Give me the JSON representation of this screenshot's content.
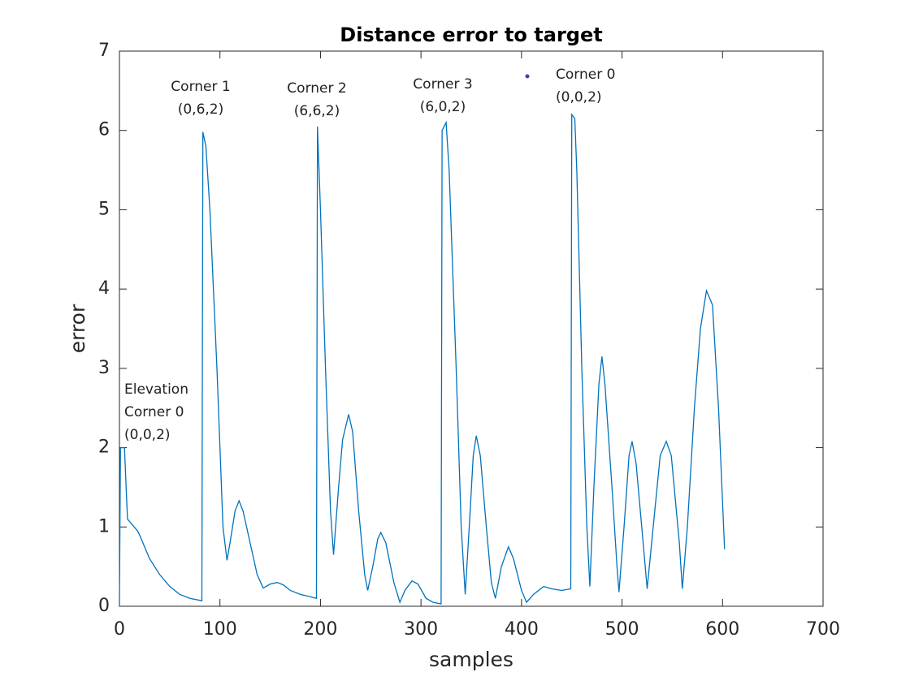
{
  "chart_data": {
    "type": "line",
    "title": "Distance error to target",
    "x_label": "samples",
    "y_label": "error",
    "xlim": [
      0,
      700
    ],
    "xticks": [
      0,
      100,
      200,
      300,
      400,
      500,
      600,
      700
    ],
    "ylim": [
      0,
      7
    ],
    "yticks": [
      0,
      1,
      2,
      3,
      4,
      5,
      6,
      7
    ],
    "color": "#0072bd",
    "x": [
      0,
      1,
      5,
      8,
      18,
      20,
      30,
      40,
      50,
      60,
      70,
      82,
      83,
      86,
      90,
      97,
      103,
      107,
      110,
      115,
      119,
      123,
      130,
      137,
      143,
      150,
      157,
      163,
      170,
      180,
      190,
      196,
      197,
      200,
      205,
      210,
      213,
      218,
      222,
      228,
      232,
      238,
      244,
      247,
      252,
      257,
      260,
      265,
      273,
      279,
      284,
      291,
      297,
      305,
      312,
      320,
      321,
      325,
      328,
      335,
      340,
      344,
      348,
      352,
      355,
      359,
      365,
      370,
      374,
      380,
      387,
      392,
      400,
      405,
      412,
      422,
      430,
      440,
      449,
      450,
      453,
      455,
      460,
      465,
      468,
      472,
      477,
      480,
      483,
      490,
      495,
      497,
      502,
      507,
      510,
      514,
      521,
      525,
      531,
      538,
      544,
      549,
      557,
      560,
      565,
      572,
      578,
      584,
      590,
      596,
      602
    ],
    "y": [
      0,
      2.0,
      2.0,
      1.1,
      0.95,
      0.9,
      0.6,
      0.4,
      0.25,
      0.15,
      0.1,
      0.07,
      5.98,
      5.8,
      5.0,
      3.0,
      1.0,
      0.58,
      0.8,
      1.2,
      1.33,
      1.2,
      0.8,
      0.4,
      0.23,
      0.28,
      0.3,
      0.27,
      0.2,
      0.15,
      0.12,
      0.1,
      6.05,
      5.0,
      3.0,
      1.2,
      0.65,
      1.5,
      2.1,
      2.42,
      2.2,
      1.2,
      0.4,
      0.2,
      0.5,
      0.85,
      0.93,
      0.8,
      0.3,
      0.05,
      0.2,
      0.32,
      0.28,
      0.1,
      0.05,
      0.03,
      6.0,
      6.1,
      5.5,
      3.0,
      1.0,
      0.15,
      1.0,
      1.9,
      2.15,
      1.9,
      1.0,
      0.3,
      0.1,
      0.5,
      0.75,
      0.6,
      0.2,
      0.05,
      0.15,
      0.25,
      0.22,
      0.2,
      0.22,
      6.2,
      6.15,
      5.5,
      3.0,
      1.0,
      0.25,
      1.5,
      2.8,
      3.15,
      2.8,
      1.5,
      0.5,
      0.18,
      1.0,
      1.9,
      2.08,
      1.8,
      0.8,
      0.22,
      1.0,
      1.9,
      2.08,
      1.9,
      0.8,
      0.22,
      1.0,
      2.5,
      3.5,
      3.98,
      3.8,
      2.5,
      0.72
    ],
    "annotations": [
      [
        "Elevation",
        "Corner 0",
        "(0,0,2)"
      ],
      [
        "Corner 1",
        "(0,6,2)"
      ],
      [
        "Corner 2",
        "(6,6,2)"
      ],
      [
        "Corner 3",
        "(6,0,2)"
      ],
      [
        "Corner 0",
        "(0,0,2)"
      ]
    ]
  }
}
